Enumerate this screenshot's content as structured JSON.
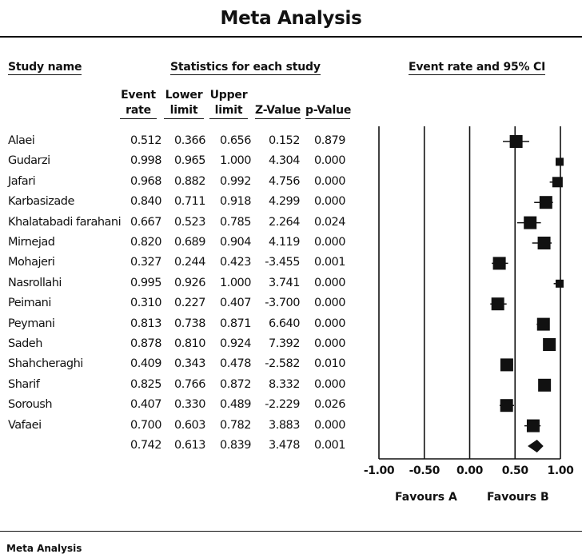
{
  "title": "Meta Analysis",
  "footer_title": "Meta Analysis",
  "headers": {
    "study_name": "Study name",
    "statistics": "Statistics for each study",
    "plot": "Event rate and 95% CI"
  },
  "columns": [
    {
      "line1": "Event",
      "line2": "rate"
    },
    {
      "line1": "Lower",
      "line2": "limit"
    },
    {
      "line1": "Upper",
      "line2": "limit"
    },
    {
      "line1": "",
      "line2": "Z-Value"
    },
    {
      "line1": "",
      "line2": "p-Value"
    }
  ],
  "favours": {
    "left": "Favours A",
    "right": "Favours B"
  },
  "chart_data": {
    "type": "forest",
    "xlim": [
      -1.0,
      1.0
    ],
    "ticks": [
      -1.0,
      -0.5,
      0.0,
      0.5,
      1.0
    ],
    "tick_labels": [
      "-1.00",
      "-0.50",
      "0.00",
      "0.50",
      "1.00"
    ],
    "studies": [
      {
        "name": "Alaei",
        "rate": 0.512,
        "lower": 0.366,
        "upper": 0.656,
        "z": 0.152,
        "p": 0.879,
        "rate_text": "0.512",
        "lower_text": "0.366",
        "upper_text": "0.656",
        "z_text": "0.152",
        "p_text": "0.879"
      },
      {
        "name": "Gudarzi",
        "rate": 0.998,
        "lower": 0.965,
        "upper": 1.0,
        "z": 4.304,
        "p": 0.0,
        "rate_text": "0.998",
        "lower_text": "0.965",
        "upper_text": "1.000",
        "z_text": "4.304",
        "p_text": "0.000"
      },
      {
        "name": "Jafari",
        "rate": 0.968,
        "lower": 0.882,
        "upper": 0.992,
        "z": 4.756,
        "p": 0.0,
        "rate_text": "0.968",
        "lower_text": "0.882",
        "upper_text": "0.992",
        "z_text": "4.756",
        "p_text": "0.000"
      },
      {
        "name": "Karbasizade",
        "rate": 0.84,
        "lower": 0.711,
        "upper": 0.918,
        "z": 4.299,
        "p": 0.0,
        "rate_text": "0.840",
        "lower_text": "0.711",
        "upper_text": "0.918",
        "z_text": "4.299",
        "p_text": "0.000"
      },
      {
        "name": "Khalatabadi farahani",
        "rate": 0.667,
        "lower": 0.523,
        "upper": 0.785,
        "z": 2.264,
        "p": 0.024,
        "rate_text": "0.667",
        "lower_text": "0.523",
        "upper_text": "0.785",
        "z_text": "2.264",
        "p_text": "0.024"
      },
      {
        "name": "Mirnejad",
        "rate": 0.82,
        "lower": 0.689,
        "upper": 0.904,
        "z": 4.119,
        "p": 0.0,
        "rate_text": "0.820",
        "lower_text": "0.689",
        "upper_text": "0.904",
        "z_text": "4.119",
        "p_text": "0.000"
      },
      {
        "name": "Mohajeri",
        "rate": 0.327,
        "lower": 0.244,
        "upper": 0.423,
        "z": -3.455,
        "p": 0.001,
        "rate_text": "0.327",
        "lower_text": "0.244",
        "upper_text": "0.423",
        "z_text": "-3.455",
        "p_text": "0.001"
      },
      {
        "name": "Nasrollahi",
        "rate": 0.995,
        "lower": 0.926,
        "upper": 1.0,
        "z": 3.741,
        "p": 0.0,
        "rate_text": "0.995",
        "lower_text": "0.926",
        "upper_text": "1.000",
        "z_text": "3.741",
        "p_text": "0.000"
      },
      {
        "name": "Peimani",
        "rate": 0.31,
        "lower": 0.227,
        "upper": 0.407,
        "z": -3.7,
        "p": 0.0,
        "rate_text": "0.310",
        "lower_text": "0.227",
        "upper_text": "0.407",
        "z_text": "-3.700",
        "p_text": "0.000"
      },
      {
        "name": "Peymani",
        "rate": 0.813,
        "lower": 0.738,
        "upper": 0.871,
        "z": 6.64,
        "p": 0.0,
        "rate_text": "0.813",
        "lower_text": "0.738",
        "upper_text": "0.871",
        "z_text": "6.640",
        "p_text": "0.000"
      },
      {
        "name": "Sadeh",
        "rate": 0.878,
        "lower": 0.81,
        "upper": 0.924,
        "z": 7.392,
        "p": 0.0,
        "rate_text": "0.878",
        "lower_text": "0.810",
        "upper_text": "0.924",
        "z_text": "7.392",
        "p_text": "0.000"
      },
      {
        "name": "Shahcheraghi",
        "rate": 0.409,
        "lower": 0.343,
        "upper": 0.478,
        "z": -2.582,
        "p": 0.01,
        "rate_text": "0.409",
        "lower_text": "0.343",
        "upper_text": "0.478",
        "z_text": "-2.582",
        "p_text": "0.010"
      },
      {
        "name": "Sharif",
        "rate": 0.825,
        "lower": 0.766,
        "upper": 0.872,
        "z": 8.332,
        "p": 0.0,
        "rate_text": "0.825",
        "lower_text": "0.766",
        "upper_text": "0.872",
        "z_text": "8.332",
        "p_text": "0.000"
      },
      {
        "name": "Soroush",
        "rate": 0.407,
        "lower": 0.33,
        "upper": 0.489,
        "z": -2.229,
        "p": 0.026,
        "rate_text": "0.407",
        "lower_text": "0.330",
        "upper_text": "0.489",
        "z_text": "-2.229",
        "p_text": "0.026"
      },
      {
        "name": "Vafaei",
        "rate": 0.7,
        "lower": 0.603,
        "upper": 0.782,
        "z": 3.883,
        "p": 0.0,
        "rate_text": "0.700",
        "lower_text": "0.603",
        "upper_text": "0.782",
        "z_text": "3.883",
        "p_text": "0.000"
      }
    ],
    "summary": {
      "name": "",
      "rate": 0.742,
      "lower": 0.613,
      "upper": 0.839,
      "z": 3.478,
      "p": 0.001,
      "rate_text": "0.742",
      "lower_text": "0.613",
      "upper_text": "0.839",
      "z_text": "3.478",
      "p_text": "0.001"
    },
    "marker_sizes": [
      3,
      1,
      2,
      3,
      3,
      3,
      3,
      1,
      3,
      3,
      3,
      3,
      3,
      3,
      3
    ]
  }
}
